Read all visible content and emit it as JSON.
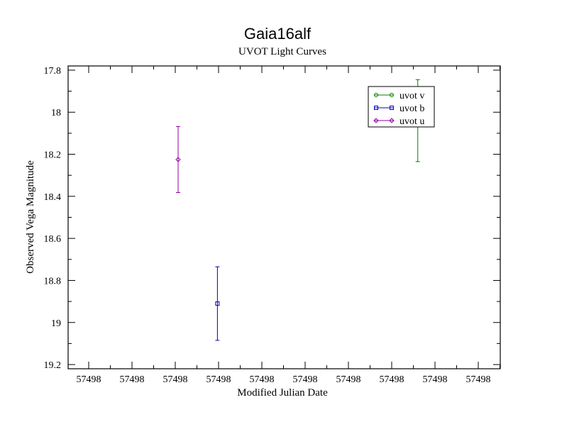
{
  "chart_data": {
    "type": "scatter",
    "title": "Gaia16alf",
    "subtitle": "UVOT Light Curves",
    "xlabel": "Modified Julian Date",
    "ylabel": "Observed Vega Magnitude",
    "xlim": [
      57497.999,
      57498.01
    ],
    "ylim": [
      19.22,
      17.78
    ],
    "y_inverted": true,
    "y_ticks": [
      17.8,
      18,
      18.2,
      18.4,
      18.6,
      18.8,
      19,
      19.2
    ],
    "y_tick_labels": [
      "17.8",
      "18",
      "18.2",
      "18.4",
      "18.6",
      "18.8",
      "19",
      "19.2"
    ],
    "x_tick_labels": [
      "57498",
      "57498",
      "57498",
      "57498",
      "57498",
      "57498",
      "57498",
      "57498",
      "57498",
      "57498"
    ],
    "grid": false,
    "legend_position": "top-right",
    "series": [
      {
        "name": "uvot v",
        "color": "#008000",
        "marker": "circle",
        "points": [
          {
            "x": 57498.0079,
            "y": 18.04,
            "err": 0.195
          }
        ]
      },
      {
        "name": "uvot b",
        "color": "#0000c0",
        "marker": "square",
        "points": [
          {
            "x": 57498.0028,
            "y": 18.91,
            "err": 0.175
          }
        ]
      },
      {
        "name": "uvot u",
        "color": "#9000a0",
        "marker": "diamond",
        "points": [
          {
            "x": 57498.0018,
            "y": 18.225,
            "err": 0.157
          }
        ]
      }
    ]
  }
}
